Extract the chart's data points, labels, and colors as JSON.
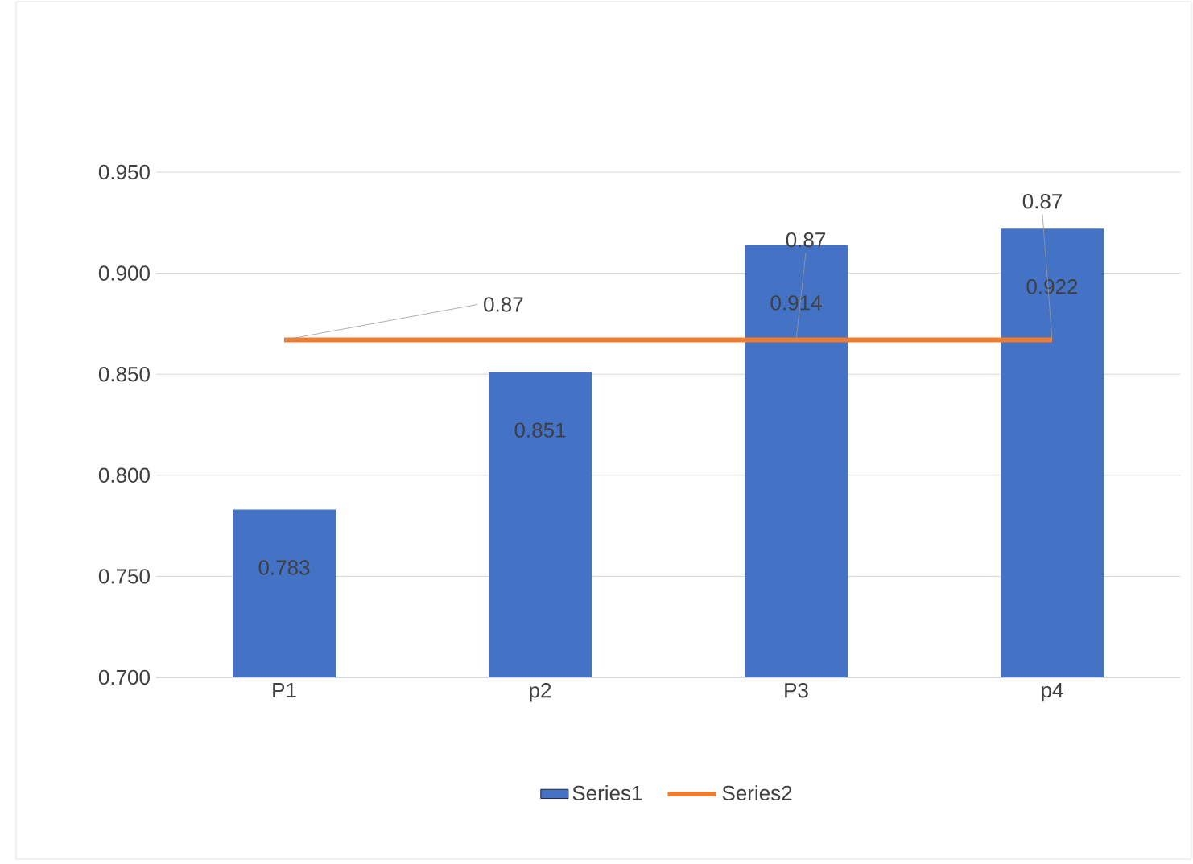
{
  "chart_data": {
    "type": "bar",
    "categories": [
      "P1",
      "p2",
      "P3",
      "p4"
    ],
    "series": [
      {
        "name": "Series1",
        "color": "#4472c4",
        "values": [
          0.783,
          0.851,
          0.914,
          0.922
        ],
        "value_labels": [
          "0.783",
          "0.851",
          "0.914",
          "0.922"
        ]
      },
      {
        "name": "Series2",
        "type": "line",
        "color": "#ed7d31",
        "values": [
          0.867,
          0.867,
          0.867,
          0.867
        ],
        "value_labels": [
          "0.87",
          null,
          "0.87",
          "0.87"
        ]
      }
    ],
    "ylim": [
      0.7,
      0.95
    ],
    "yticks": [
      {
        "value": 0.7,
        "label": "0.700"
      },
      {
        "value": 0.75,
        "label": "0.750"
      },
      {
        "value": 0.8,
        "label": "0.800"
      },
      {
        "value": 0.85,
        "label": "0.850"
      },
      {
        "value": 0.9,
        "label": "0.900"
      },
      {
        "value": 0.95,
        "label": "0.950"
      }
    ],
    "grid": "y",
    "legend": "bottom",
    "marker": "none"
  }
}
